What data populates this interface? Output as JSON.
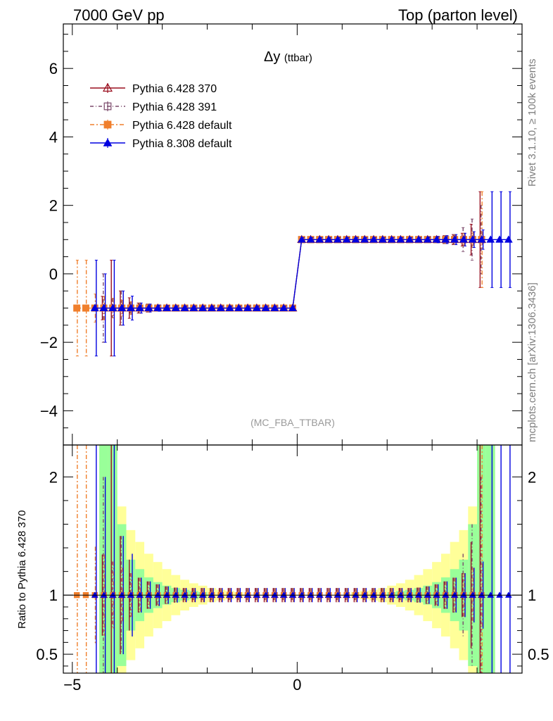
{
  "header": {
    "left": "7000 GeV pp",
    "right": "Top (parton level)"
  },
  "side_text": {
    "rivet": "Rivet 3.1.10, ≥ 100k events",
    "mcplots": "mcplots.cern.ch [arXiv:1306.3436]"
  },
  "chart_data": [
    {
      "type": "line",
      "title": "Δy (ttbar)",
      "title_main": "Δy",
      "title_sub": "(ttbar)",
      "analysis_label": "(MC_FBA_TTBAR)",
      "xlim": [
        -5.2,
        5.0
      ],
      "ylim": [
        -5.0,
        7.3
      ],
      "xticks": [
        -5,
        0
      ],
      "yticks": [
        -4,
        -2,
        0,
        2,
        4,
        6
      ],
      "ytick_labels": [
        "−4",
        "−2",
        "0",
        "2",
        "4",
        "6"
      ],
      "xtick_labels": [
        "−5",
        "0"
      ],
      "bins": {
        "start": -4.8,
        "width": 0.2,
        "count": 48,
        "step_at": 0.0
      },
      "legend_position": "top-left",
      "series": [
        {
          "name": "Pythia 6.428 370",
          "color": "#9a0f1f",
          "marker": "open-triangle",
          "x_from": -4.3,
          "x_to": 4.1,
          "values_neg": -1.0,
          "values_pos": 1.0,
          "err_edge": [
            [
              -4.1,
              1.4
            ],
            [
              -3.9,
              0.5
            ],
            [
              -3.7,
              0.3
            ],
            [
              3.9,
              0.45
            ],
            [
              4.1,
              1.4
            ]
          ]
        },
        {
          "name": "Pythia 6.428 391",
          "color": "#7b4a6b",
          "marker": "open-square",
          "x_from": -4.3,
          "x_to": 4.1,
          "values_neg": -1.0,
          "values_pos": 1.0,
          "err_edge": [
            [
              -4.3,
              1.0
            ],
            [
              -3.9,
              0.5
            ],
            [
              3.7,
              0.35
            ],
            [
              3.9,
              0.6
            ],
            [
              4.1,
              1.0
            ]
          ]
        },
        {
          "name": "Pythia 6.428 default",
          "color": "#f07f2c",
          "marker": "filled-square",
          "x_from": -4.9,
          "x_to": 4.1,
          "values_neg": -1.0,
          "values_pos": 1.0,
          "err_edge": [
            [
              -4.9,
              1.4
            ],
            [
              -4.7,
              1.4
            ],
            [
              4.1,
              1.4
            ]
          ]
        },
        {
          "name": "Pythia 8.308 default",
          "color": "#0000e0",
          "marker": "filled-triangle",
          "x_from": -4.5,
          "x_to": 4.7,
          "values_neg": -1.0,
          "values_pos": 1.0,
          "err_edge": [
            [
              -4.5,
              1.4
            ],
            [
              -4.3,
              1.0
            ],
            [
              -4.1,
              1.4
            ],
            [
              -3.9,
              0.5
            ],
            [
              -3.7,
              0.35
            ],
            [
              4.3,
              1.4
            ],
            [
              4.5,
              1.4
            ],
            [
              4.7,
              1.4
            ]
          ]
        }
      ]
    },
    {
      "type": "line",
      "ylabel": "Ratio to Pythia 6.428 370",
      "xlim": [
        -5.2,
        5.0
      ],
      "ylim": [
        0.34,
        2.27
      ],
      "xticks": [
        -5,
        0
      ],
      "xtick_labels": [
        "−5",
        "0"
      ],
      "yticks": [
        0.5,
        1,
        2
      ],
      "ytick_labels": [
        "0.5",
        "1",
        "2"
      ],
      "reference": 1.0,
      "band_colors": {
        "inner": "#99ff99",
        "outer": "#ffff99"
      },
      "band_outer_halfwidth": [
        [
          -4.3,
          1.4
        ],
        [
          -4.1,
          1.0
        ],
        [
          -3.9,
          0.75
        ],
        [
          -3.7,
          0.55
        ],
        [
          -3.5,
          0.45
        ],
        [
          -3.3,
          0.35
        ],
        [
          -3.1,
          0.28
        ],
        [
          -2.9,
          0.22
        ],
        [
          -2.7,
          0.17
        ],
        [
          -2.5,
          0.13
        ],
        [
          -2.3,
          0.1
        ],
        [
          -2.1,
          0.08
        ],
        [
          -1.9,
          0.06
        ],
        [
          -1.7,
          0.045
        ],
        [
          -1.5,
          0.035
        ],
        [
          -1.3,
          0.025
        ],
        [
          1.3,
          0.025
        ],
        [
          1.5,
          0.035
        ],
        [
          1.7,
          0.045
        ],
        [
          1.9,
          0.06
        ],
        [
          2.1,
          0.08
        ],
        [
          2.3,
          0.1
        ],
        [
          2.5,
          0.13
        ],
        [
          2.7,
          0.17
        ],
        [
          2.9,
          0.22
        ],
        [
          3.1,
          0.28
        ],
        [
          3.3,
          0.35
        ],
        [
          3.5,
          0.45
        ],
        [
          3.7,
          0.55
        ],
        [
          3.9,
          0.75
        ],
        [
          4.1,
          1.0
        ],
        [
          4.3,
          1.4
        ]
      ],
      "band_inner_halfwidth": [
        [
          -4.3,
          1.4
        ],
        [
          -4.1,
          1.3
        ],
        [
          -3.9,
          0.6
        ],
        [
          -3.7,
          0.3
        ],
        [
          -3.5,
          0.22
        ],
        [
          -3.3,
          0.15
        ],
        [
          -3.1,
          0.11
        ],
        [
          -2.9,
          0.08
        ],
        [
          -2.7,
          0.06
        ],
        [
          -2.5,
          0.045
        ],
        [
          -2.3,
          0.035
        ],
        [
          -2.1,
          0.025
        ],
        [
          2.1,
          0.025
        ],
        [
          2.3,
          0.035
        ],
        [
          2.5,
          0.045
        ],
        [
          2.7,
          0.06
        ],
        [
          2.9,
          0.08
        ],
        [
          3.1,
          0.11
        ],
        [
          3.3,
          0.15
        ],
        [
          3.5,
          0.22
        ],
        [
          3.7,
          0.3
        ],
        [
          3.9,
          0.6
        ],
        [
          4.1,
          1.3
        ],
        [
          4.3,
          1.4
        ]
      ]
    }
  ]
}
